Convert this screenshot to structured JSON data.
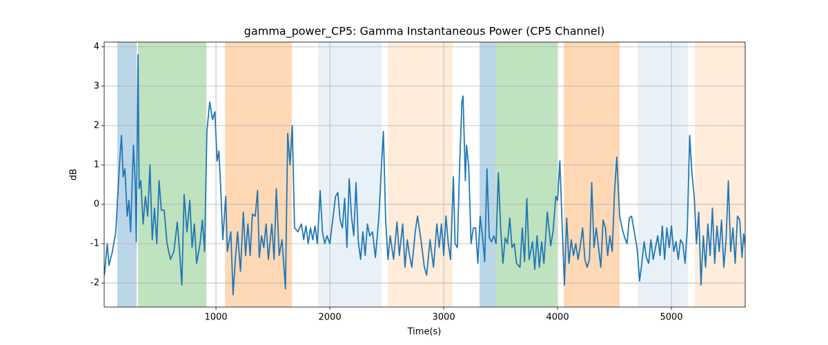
{
  "chart_data": {
    "type": "line",
    "title": "gamma_power_CP5: Gamma Instantaneous Power (CP5 Channel)",
    "x_label": "Time(s)",
    "y_label": "dB",
    "xlim": [
      18,
      5648
    ],
    "ylim": [
      -2.61,
      4.12
    ],
    "xticks": [
      1000,
      2000,
      3000,
      4000,
      5000
    ],
    "yticks": [
      -2,
      -1,
      0,
      1,
      2,
      3,
      4
    ],
    "grid": true,
    "spans": [
      {
        "x": [
          133,
          303
        ],
        "color": "#1f77b4",
        "alpha": 0.3
      },
      {
        "x": [
          315,
          915
        ],
        "color": "#2ca02c",
        "alpha": 0.3
      },
      {
        "x": [
          1079,
          1667
        ],
        "color": "#ff7f0e",
        "alpha": 0.3
      },
      {
        "x": [
          1897,
          2455
        ],
        "color": "#1f77b4",
        "alpha": 0.1
      },
      {
        "x": [
          2509,
          3079
        ],
        "color": "#ff7f0e",
        "alpha": 0.15
      },
      {
        "x": [
          3315,
          3455
        ],
        "color": "#1f77b4",
        "alpha": 0.3
      },
      {
        "x": [
          3455,
          3994
        ],
        "color": "#2ca02c",
        "alpha": 0.3
      },
      {
        "x": [
          4055,
          4545
        ],
        "color": "#ff7f0e",
        "alpha": 0.3
      },
      {
        "x": [
          4703,
          5145
        ],
        "color": "#1f77b4",
        "alpha": 0.1
      },
      {
        "x": [
          5206,
          5648
        ],
        "color": "#ff7f0e",
        "alpha": 0.15
      }
    ],
    "series": [
      {
        "color": "#1f77b4",
        "x": [
          20,
          45,
          60,
          90,
          120,
          150,
          170,
          185,
          200,
          220,
          235,
          250,
          275,
          290,
          300,
          315,
          325,
          340,
          360,
          380,
          400,
          420,
          440,
          460,
          480,
          500,
          520,
          545,
          570,
          600,
          630,
          660,
          680,
          700,
          720,
          745,
          770,
          790,
          810,
          830,
          860,
          880,
          900,
          920,
          945,
          970,
          990,
          1010,
          1025,
          1040,
          1060,
          1085,
          1100,
          1130,
          1150,
          1170,
          1190,
          1215,
          1240,
          1260,
          1280,
          1300,
          1320,
          1345,
          1365,
          1380,
          1400,
          1420,
          1440,
          1460,
          1490,
          1510,
          1530,
          1555,
          1580,
          1610,
          1630,
          1650,
          1670,
          1690,
          1720,
          1750,
          1770,
          1790,
          1810,
          1830,
          1850,
          1870,
          1890,
          1915,
          1935,
          1955,
          1975,
          2000,
          2025,
          2050,
          2070,
          2090,
          2110,
          2130,
          2150,
          2170,
          2190,
          2210,
          2230,
          2250,
          2270,
          2290,
          2310,
          2330,
          2350,
          2375,
          2400,
          2430,
          2455,
          2470,
          2490,
          2510,
          2530,
          2560,
          2590,
          2610,
          2640,
          2660,
          2680,
          2700,
          2720,
          2750,
          2770,
          2800,
          2830,
          2850,
          2880,
          2910,
          2940,
          2960,
          2980,
          3000,
          3020,
          3040,
          3060,
          3085,
          3100,
          3120,
          3140,
          3160,
          3170,
          3190,
          3200,
          3220,
          3240,
          3260,
          3280,
          3300,
          3320,
          3340,
          3360,
          3380,
          3400,
          3420,
          3440,
          3460,
          3480,
          3500,
          3520,
          3540,
          3560,
          3580,
          3600,
          3620,
          3640,
          3670,
          3690,
          3710,
          3730,
          3750,
          3780,
          3800,
          3820,
          3840,
          3860,
          3880,
          3910,
          3940,
          3960,
          3985,
          4000,
          4020,
          4040,
          4060,
          4080,
          4100,
          4120,
          4140,
          4160,
          4180,
          4200,
          4220,
          4240,
          4260,
          4280,
          4300,
          4320,
          4340,
          4360,
          4380,
          4400,
          4420,
          4440,
          4460,
          4480,
          4500,
          4520,
          4545,
          4570,
          4590,
          4610,
          4630,
          4650,
          4680,
          4700,
          4720,
          4740,
          4760,
          4780,
          4800,
          4820,
          4840,
          4860,
          4880,
          4900,
          4920,
          4940,
          4960,
          4980,
          5000,
          5020,
          5040,
          5060,
          5080,
          5100,
          5120,
          5140,
          5160,
          5180,
          5200,
          5220,
          5240,
          5260,
          5280,
          5300,
          5320,
          5340,
          5360,
          5380,
          5400,
          5420,
          5440,
          5460,
          5480,
          5500,
          5520,
          5540,
          5560,
          5580,
          5600,
          5620,
          5635,
          5650
        ],
        "values": [
          -1.8,
          -1.0,
          -1.55,
          -1.2,
          -0.7,
          0.9,
          1.75,
          0.7,
          0.9,
          -0.3,
          0.1,
          -0.7,
          1.5,
          0.6,
          -0.95,
          3.8,
          0.4,
          0.6,
          -0.5,
          0.2,
          -0.3,
          1.0,
          -0.9,
          -0.1,
          -1.0,
          0.6,
          -0.15,
          -0.15,
          -1.0,
          -1.4,
          -1.2,
          -0.45,
          -1.2,
          -2.05,
          0.25,
          -0.7,
          0.1,
          -1.1,
          -0.5,
          -1.5,
          -1.0,
          -0.4,
          -1.2,
          1.85,
          2.6,
          2.15,
          2.35,
          1.1,
          1.35,
          0.5,
          -0.9,
          0.2,
          -1.2,
          -0.7,
          -2.3,
          -1.4,
          -0.7,
          -1.7,
          -0.2,
          -1.3,
          -0.5,
          -1.3,
          -0.25,
          -0.3,
          0.35,
          -1.35,
          -0.8,
          -1.1,
          -0.5,
          -1.4,
          -0.5,
          -1.4,
          0.4,
          -1.3,
          -0.9,
          -2.15,
          1.8,
          1.0,
          2.0,
          -0.6,
          -0.7,
          -0.5,
          -0.9,
          -0.55,
          -1.0,
          -0.6,
          -0.9,
          -0.55,
          -1.0,
          0.35,
          -0.7,
          -1.0,
          -0.8,
          -1.0,
          -0.4,
          0.2,
          0.3,
          -0.4,
          -0.6,
          0.15,
          -1.1,
          0.65,
          -0.3,
          -0.8,
          0.55,
          -0.95,
          -1.4,
          -0.7,
          -1.3,
          -0.5,
          -0.8,
          -0.7,
          -1.35,
          -0.35,
          1.05,
          1.85,
          -0.4,
          -1.4,
          -0.8,
          -1.4,
          -0.45,
          -1.3,
          -0.5,
          -1.6,
          -0.9,
          -1.3,
          -1.6,
          -0.7,
          -0.3,
          -0.9,
          -1.6,
          -1.8,
          -0.9,
          -1.6,
          -0.5,
          -1.1,
          -0.5,
          -1.3,
          -0.3,
          -1.0,
          -1.4,
          0.7,
          -1.0,
          -1.1,
          1.0,
          2.6,
          2.75,
          0.6,
          1.5,
          0.95,
          -1.0,
          -0.6,
          -0.6,
          -1.5,
          -0.3,
          -0.8,
          -1.45,
          0.9,
          -0.85,
          -0.95,
          -0.8,
          -1.0,
          0.8,
          -0.6,
          -1.5,
          -0.85,
          -1.0,
          -0.35,
          -1.1,
          -1.0,
          -1.5,
          -1.6,
          -0.6,
          -1.45,
          0.15,
          -1.4,
          -0.95,
          -1.65,
          -0.8,
          -1.6,
          -0.95,
          -1.5,
          -0.2,
          -1.05,
          -0.7,
          0.2,
          0.1,
          1.1,
          -0.5,
          -2.05,
          -0.35,
          -1.5,
          -0.9,
          -1.3,
          -1.0,
          -1.4,
          -1.05,
          -0.6,
          -1.4,
          -1.6,
          -1.4,
          0.55,
          -1.1,
          -0.6,
          -1.1,
          -1.6,
          -0.4,
          -0.6,
          -1.3,
          -0.8,
          -1.2,
          0.3,
          1.2,
          -0.3,
          -0.65,
          -0.85,
          -1.0,
          -0.35,
          -0.3,
          -0.8,
          -1.15,
          -1.95,
          -1.5,
          -0.95,
          -1.35,
          -1.5,
          -0.9,
          -1.4,
          -1.1,
          -0.8,
          -1.3,
          -0.55,
          -1.4,
          -0.6,
          -1.1,
          -0.55,
          -1.2,
          -0.95,
          -1.4,
          -0.9,
          -1.0,
          -1.5,
          -0.6,
          1.75,
          0.8,
          0.2,
          -1.0,
          -0.2,
          -2.05,
          -0.8,
          -1.6,
          -0.5,
          -1.3,
          -0.1,
          -1.5,
          -0.55,
          -1.2,
          -0.4,
          -1.6,
          -0.9,
          0.6,
          -1.2,
          -0.6,
          -1.5,
          -0.3,
          -0.4,
          -1.35,
          -0.75,
          -1.1
        ]
      }
    ]
  }
}
